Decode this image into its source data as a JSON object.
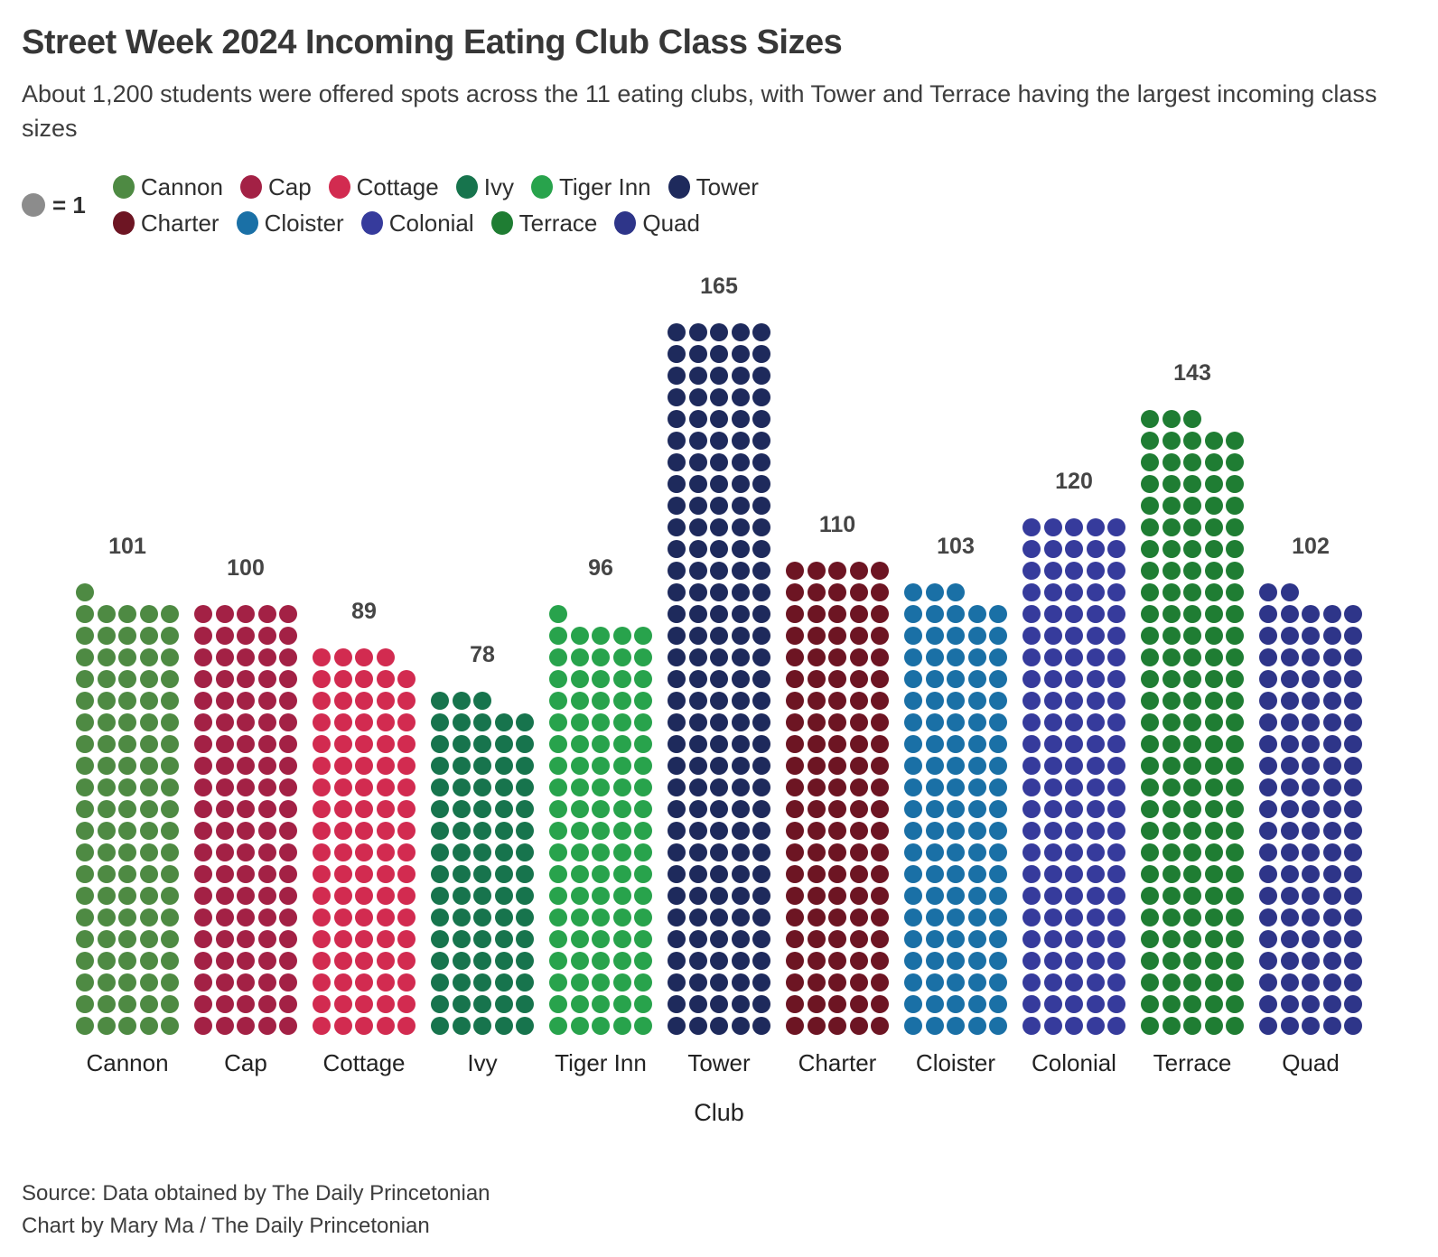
{
  "header": {
    "title": "Street Week 2024 Incoming Eating Club Class Sizes",
    "subtitle": "About 1,200 students were offered spots across the 11 eating clubs, with Tower and Terrace having the largest incoming class sizes"
  },
  "legend": {
    "unit_label": "= 1",
    "unit_color": "#8c8c8c",
    "rows": [
      [
        "Cannon",
        "Cap",
        "Cottage",
        "Ivy",
        "Tiger Inn",
        "Tower"
      ],
      [
        "Charter",
        "Cloister",
        "Colonial",
        "Terrace",
        "Quad"
      ]
    ]
  },
  "chart_data": {
    "type": "bar",
    "variant": "isotype-dot-grid",
    "unit_value": 1,
    "dots_per_row": 5,
    "title": "Street Week 2024 Incoming Eating Club Class Sizes",
    "subtitle": "About 1,200 students were offered spots across the 11 eating clubs, with Tower and Terrace having the largest incoming class sizes",
    "xlabel": "Club",
    "ylabel": "",
    "legend_position": "top",
    "categories": [
      "Cannon",
      "Cap",
      "Cottage",
      "Ivy",
      "Tiger Inn",
      "Tower",
      "Charter",
      "Cloister",
      "Colonial",
      "Terrace",
      "Quad"
    ],
    "values": [
      101,
      100,
      89,
      78,
      96,
      165,
      110,
      103,
      120,
      143,
      102
    ],
    "series": [
      {
        "name": "Cannon",
        "value": 101,
        "color": "#4e8a43"
      },
      {
        "name": "Cap",
        "value": 100,
        "color": "#a32145"
      },
      {
        "name": "Cottage",
        "value": 89,
        "color": "#d22b50"
      },
      {
        "name": "Ivy",
        "value": 78,
        "color": "#17744d"
      },
      {
        "name": "Tiger Inn",
        "value": 96,
        "color": "#28a34c"
      },
      {
        "name": "Tower",
        "value": 165,
        "color": "#1e2a5c"
      },
      {
        "name": "Charter",
        "value": 110,
        "color": "#6d1523"
      },
      {
        "name": "Cloister",
        "value": 103,
        "color": "#1a70a6"
      },
      {
        "name": "Colonial",
        "value": 120,
        "color": "#363b9c"
      },
      {
        "name": "Terrace",
        "value": 143,
        "color": "#1f7d33"
      },
      {
        "name": "Quad",
        "value": 102,
        "color": "#2e3589"
      }
    ]
  },
  "footer": {
    "source_line": "Source: Data obtained by The Daily Princetonian",
    "credit_line": "Chart by Mary Ma / The Daily Princetonian"
  }
}
